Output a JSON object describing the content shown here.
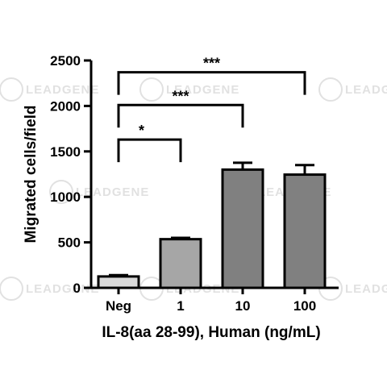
{
  "watermark": {
    "text": "LEADGENE",
    "color": "#bdbdbd"
  },
  "chart_data": {
    "type": "bar",
    "xlabel": "IL-8(aa 28-99), Human (ng/mL)",
    "ylabel": "Migrated cells/field",
    "categories": [
      "Neg",
      "1",
      "10",
      "100"
    ],
    "values": [
      125,
      535,
      1300,
      1245
    ],
    "errors": [
      15,
      15,
      75,
      105
    ],
    "bar_colors": [
      "#d9d9d9",
      "#a6a6a6",
      "#808080",
      "#808080"
    ],
    "ylim": [
      0,
      2500
    ],
    "yticks": [
      0,
      500,
      1000,
      1500,
      2000,
      2500
    ],
    "grid": false,
    "significance": [
      {
        "from": "Neg",
        "to": "1",
        "label": "*",
        "y": 1630
      },
      {
        "from": "Neg",
        "to": "10",
        "label": "***",
        "y": 2010
      },
      {
        "from": "Neg",
        "to": "100",
        "label": "***",
        "y": 2370
      }
    ]
  }
}
